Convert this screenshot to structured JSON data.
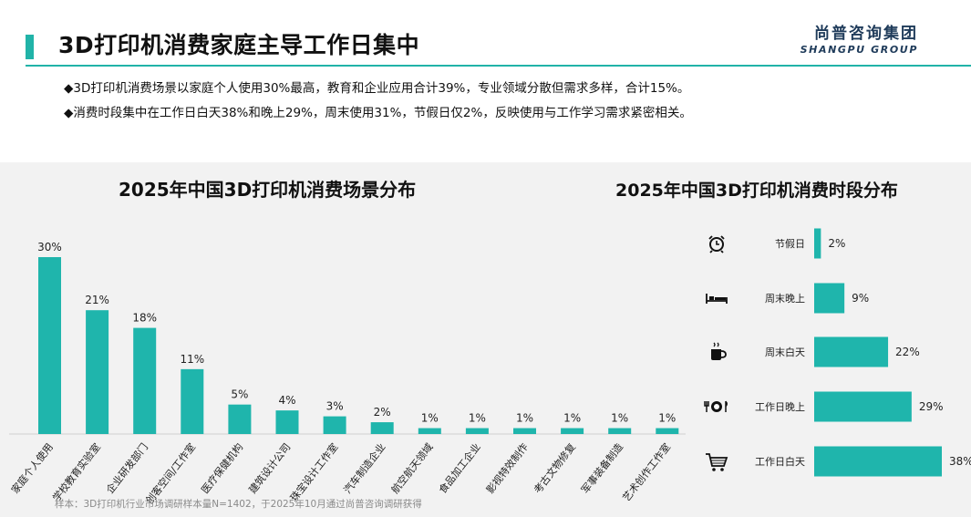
{
  "header": {
    "title": "3D打印机消费家庭主导工作日集中",
    "logo_cn": "尚普咨询集团",
    "logo_en": "SHANGPU GROUP"
  },
  "bullets": [
    "◆3D打印机消费场景以家庭个人使用30%最高，教育和企业应用合计39%，专业领域分散但需求多样，合计15%。",
    "◆消费时段集中在工作日白天38%和晚上29%，周末使用31%，节假日仅2%，反映使用与工作学习需求紧密相关。"
  ],
  "colors": {
    "accent": "#21b3a8",
    "bar": "#1fb5ac"
  },
  "chart_data": [
    {
      "type": "bar",
      "title": "2025年中国3D打印机消费场景分布",
      "categories": [
        "家庭个人使用",
        "学校教育实验室",
        "企业研发部门",
        "创客空间/工作室",
        "医疗保健机构",
        "建筑设计公司",
        "珠宝设计工作室",
        "汽车制造企业",
        "航空航天领域",
        "食品加工企业",
        "影视特效制作",
        "考古文物修复",
        "军事装备制造",
        "艺术创作工作室"
      ],
      "values": [
        30,
        21,
        18,
        11,
        5,
        4,
        3,
        2,
        1,
        1,
        1,
        1,
        1,
        1
      ],
      "labels": [
        "30%",
        "21%",
        "18%",
        "11%",
        "5%",
        "4%",
        "3%",
        "2%",
        "1%",
        "1%",
        "1%",
        "1%",
        "1%",
        "1%"
      ],
      "unit": "%",
      "ylim": [
        0,
        30
      ]
    },
    {
      "type": "bar",
      "orientation": "horizontal",
      "title": "2025年中国3D打印机消费时段分布",
      "categories": [
        "节假日",
        "周末晚上",
        "周末白天",
        "工作日晚上",
        "工作日白天"
      ],
      "values": [
        2,
        9,
        22,
        29,
        38
      ],
      "labels": [
        "2%",
        "9%",
        "22%",
        "29%",
        "38%"
      ],
      "icons": [
        "alarm-clock-icon",
        "bed-icon",
        "coffee-cup-icon",
        "dinner-plate-icon",
        "shopping-cart-icon"
      ],
      "unit": "%",
      "xlim": [
        0,
        38
      ]
    }
  ],
  "source": "样本：3D打印机行业市场调研样本量N=1402，于2025年10月通过尚普咨询调研获得"
}
